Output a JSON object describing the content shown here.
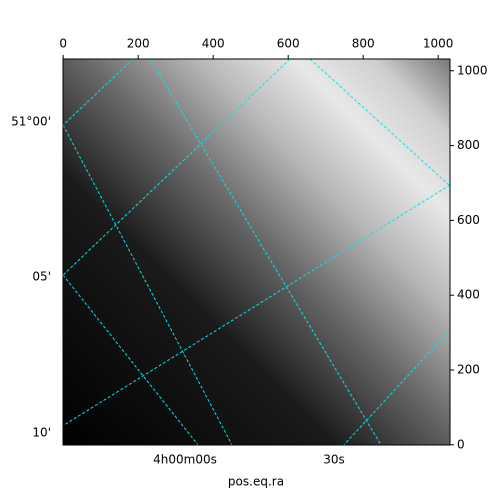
{
  "chart_data": {
    "type": "image",
    "xlabel": "pos.eq.ra",
    "xlim": [
      -0.5,
      1031.5
    ],
    "xticks": [
      0,
      200,
      400,
      600,
      800,
      1000
    ],
    "ylim": [
      -0.5,
      1031.5
    ],
    "yticks": [
      0,
      200,
      400,
      600,
      800,
      1000
    ],
    "world_left_labels": [
      "51°00'",
      "05'",
      "10'"
    ],
    "world_bottom_labels": [
      "4h00m00s",
      "30s"
    ],
    "grid_color": "#00e5ee"
  }
}
